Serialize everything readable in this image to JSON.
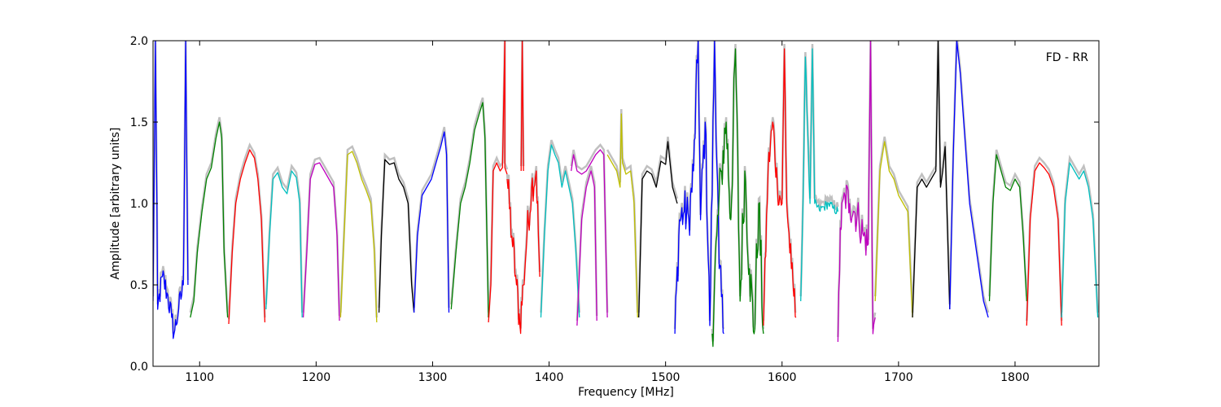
{
  "chart_data": {
    "type": "line",
    "annotation": "FD - RR",
    "xlabel": "Frequency [MHz]",
    "ylabel": "Amplitude [arbitrary units]",
    "xlim": [
      1060,
      1872
    ],
    "ylim": [
      0,
      2.0
    ],
    "xticks": [
      1100,
      1200,
      1300,
      1400,
      1500,
      1600,
      1700,
      1800
    ],
    "yticks": [
      0.0,
      0.5,
      1.0,
      1.5,
      2.0
    ],
    "ytick_labels": [
      "0.0",
      "0.5",
      "1.0",
      "1.5",
      "2.0"
    ],
    "grid": false,
    "background_color": "#c0c0c0",
    "colors": {
      "b": "#0000ff",
      "g": "#008000",
      "r": "#ff0000",
      "c": "#00bfbf",
      "m": "#bf00bf",
      "y": "#bfbf00",
      "k": "#000000"
    },
    "series": [
      {
        "color": "b",
        "noise": 0.08,
        "x": [
          1060,
          1062,
          1064,
          1068,
          1072,
          1076,
          1078,
          1082,
          1086,
          1088,
          1090
        ],
        "y": [
          0.4,
          2.0,
          0.35,
          0.55,
          0.45,
          0.3,
          0.2,
          0.35,
          0.5,
          2.0,
          0.5
        ]
      },
      {
        "color": "g",
        "noise": 0.0,
        "x": [
          1092,
          1095,
          1098,
          1102,
          1106,
          1110,
          1114,
          1117,
          1119,
          1121,
          1124
        ],
        "y": [
          0.3,
          0.4,
          0.7,
          0.95,
          1.15,
          1.22,
          1.4,
          1.5,
          1.4,
          0.7,
          0.3
        ]
      },
      {
        "color": "r",
        "noise": 0.0,
        "x": [
          1125,
          1128,
          1131,
          1135,
          1139,
          1143,
          1147,
          1150,
          1153,
          1156
        ],
        "y": [
          0.26,
          0.7,
          1.0,
          1.15,
          1.25,
          1.33,
          1.28,
          1.15,
          0.9,
          0.27
        ]
      },
      {
        "color": "c",
        "noise": 0.0,
        "x": [
          1157,
          1160,
          1163,
          1167,
          1171,
          1175,
          1179,
          1183,
          1186,
          1188
        ],
        "y": [
          0.35,
          0.8,
          1.15,
          1.19,
          1.1,
          1.06,
          1.2,
          1.16,
          1.0,
          0.3
        ]
      },
      {
        "color": "m",
        "noise": 0.0,
        "x": [
          1189,
          1192,
          1195,
          1199,
          1203,
          1207,
          1211,
          1215,
          1218,
          1220
        ],
        "y": [
          0.3,
          0.7,
          1.15,
          1.24,
          1.25,
          1.2,
          1.15,
          1.1,
          0.8,
          0.28
        ]
      },
      {
        "color": "y",
        "noise": 0.0,
        "x": [
          1221,
          1224,
          1227,
          1231,
          1235,
          1239,
          1243,
          1247,
          1250,
          1252
        ],
        "y": [
          0.3,
          0.8,
          1.3,
          1.32,
          1.25,
          1.15,
          1.08,
          1.0,
          0.7,
          0.27
        ]
      },
      {
        "color": "k",
        "noise": 0.0,
        "x": [
          1254,
          1256,
          1259,
          1263,
          1267,
          1271,
          1275,
          1279,
          1282,
          1284
        ],
        "y": [
          0.33,
          0.8,
          1.27,
          1.24,
          1.25,
          1.15,
          1.1,
          1.0,
          0.5,
          0.33
        ]
      },
      {
        "color": "b",
        "noise": 0.0,
        "x": [
          1284,
          1287,
          1291,
          1295,
          1299,
          1303,
          1307,
          1310,
          1312,
          1314
        ],
        "y": [
          0.33,
          0.8,
          1.05,
          1.1,
          1.15,
          1.25,
          1.35,
          1.44,
          1.3,
          0.33
        ]
      },
      {
        "color": "g",
        "noise": 0.0,
        "x": [
          1316,
          1320,
          1324,
          1328,
          1332,
          1336,
          1340,
          1343,
          1345,
          1348
        ],
        "y": [
          0.35,
          0.7,
          1.0,
          1.1,
          1.25,
          1.45,
          1.55,
          1.62,
          1.4,
          0.3
        ]
      },
      {
        "color": "r",
        "noise": 0.0,
        "x": [
          1348,
          1350,
          1352,
          1355,
          1358,
          1360,
          1362,
          1362,
          1364
        ],
        "y": [
          0.27,
          0.5,
          1.2,
          1.25,
          1.2,
          1.22,
          2.0,
          1.22,
          1.18
        ]
      },
      {
        "color": "r",
        "noise": 0.12,
        "x": [
          1364,
          1368,
          1372,
          1375,
          1378,
          1381,
          1385,
          1389,
          1392
        ],
        "y": [
          1.15,
          0.8,
          0.5,
          0.25,
          0.5,
          0.8,
          1.1,
          1.2,
          0.55
        ]
      },
      {
        "color": "r",
        "noise": 0.0,
        "x": [
          1376,
          1377,
          1378
        ],
        "y": [
          1.2,
          2.0,
          1.2
        ]
      },
      {
        "color": "c",
        "noise": 0.0,
        "x": [
          1393,
          1396,
          1399,
          1402,
          1405,
          1408,
          1411,
          1414,
          1417,
          1420,
          1423,
          1426
        ],
        "y": [
          0.3,
          0.8,
          1.2,
          1.36,
          1.3,
          1.25,
          1.1,
          1.2,
          1.1,
          1.0,
          0.7,
          0.3
        ]
      },
      {
        "color": "m",
        "noise": 0.0,
        "x": [
          1419,
          1421,
          1424,
          1428,
          1432,
          1436,
          1440,
          1444,
          1447,
          1450
        ],
        "y": [
          1.2,
          1.3,
          1.2,
          1.18,
          1.2,
          1.25,
          1.3,
          1.33,
          1.3,
          0.3
        ]
      },
      {
        "color": "m",
        "noise": 0.0,
        "x": [
          1424,
          1428,
          1432,
          1436,
          1439,
          1441
        ],
        "y": [
          0.25,
          0.9,
          1.1,
          1.2,
          1.1,
          0.28
        ]
      },
      {
        "color": "y",
        "noise": 0.0,
        "x": [
          1450,
          1454,
          1458,
          1461,
          1462,
          1463,
          1466,
          1470,
          1473,
          1476
        ],
        "y": [
          1.3,
          1.25,
          1.2,
          1.1,
          1.55,
          1.25,
          1.18,
          1.2,
          1.0,
          0.3
        ]
      },
      {
        "color": "k",
        "noise": 0.0,
        "x": [
          1477,
          1480,
          1484,
          1488,
          1492,
          1496,
          1500,
          1502,
          1506,
          1510
        ],
        "y": [
          0.3,
          1.15,
          1.2,
          1.18,
          1.1,
          1.26,
          1.24,
          1.38,
          1.1,
          1.0
        ]
      },
      {
        "color": "b",
        "noise": 0.15,
        "x": [
          1508,
          1512,
          1516,
          1520,
          1524,
          1528,
          1530,
          1534,
          1538,
          1542,
          1546,
          1550
        ],
        "y": [
          0.2,
          0.9,
          0.95,
          0.9,
          1.2,
          2.0,
          0.9,
          1.5,
          0.25,
          2.0,
          0.6,
          0.2
        ]
      },
      {
        "color": "g",
        "noise": 0.18,
        "x": [
          1540,
          1544,
          1548,
          1552,
          1556,
          1560,
          1564,
          1568,
          1572,
          1576,
          1580,
          1584
        ],
        "y": [
          0.2,
          0.8,
          1.2,
          1.5,
          0.9,
          1.95,
          0.4,
          1.2,
          0.6,
          0.2,
          1.0,
          0.2
        ]
      },
      {
        "color": "r",
        "noise": 0.1,
        "x": [
          1584,
          1588,
          1592,
          1596,
          1600,
          1602,
          1604,
          1608,
          1612
        ],
        "y": [
          0.25,
          1.2,
          1.5,
          1.1,
          1.0,
          1.95,
          1.0,
          0.6,
          0.3
        ]
      },
      {
        "color": "c",
        "noise": 0.03,
        "x": [
          1616,
          1618,
          1620,
          1624,
          1626,
          1628,
          1632,
          1636,
          1640,
          1644,
          1648
        ],
        "y": [
          0.4,
          1.0,
          1.9,
          1.0,
          1.95,
          1.0,
          0.96,
          0.98,
          1.0,
          0.97,
          0.95
        ]
      },
      {
        "color": "m",
        "noise": 0.12,
        "x": [
          1648,
          1650,
          1654,
          1658,
          1662,
          1666,
          1670,
          1674,
          1676,
          1678,
          1680
        ],
        "y": [
          0.15,
          0.85,
          1.05,
          1.0,
          0.95,
          0.9,
          0.8,
          0.75,
          2.0,
          0.2,
          0.3
        ]
      },
      {
        "color": "y",
        "noise": 0.0,
        "x": [
          1680,
          1684,
          1688,
          1692,
          1696,
          1700,
          1704,
          1708,
          1712
        ],
        "y": [
          0.4,
          1.2,
          1.38,
          1.2,
          1.15,
          1.05,
          1.0,
          0.95,
          0.3
        ]
      },
      {
        "color": "k",
        "noise": 0.0,
        "x": [
          1712,
          1716,
          1720,
          1724,
          1728,
          1732,
          1734,
          1736,
          1738,
          1740,
          1744
        ],
        "y": [
          0.3,
          1.1,
          1.15,
          1.1,
          1.15,
          1.2,
          2.0,
          1.1,
          1.2,
          1.35,
          0.35
        ]
      },
      {
        "color": "b",
        "noise": 0.0,
        "x": [
          1744,
          1747,
          1750,
          1753,
          1757,
          1761,
          1765,
          1769,
          1773,
          1777
        ],
        "y": [
          0.35,
          1.3,
          2.0,
          1.8,
          1.4,
          1.0,
          0.8,
          0.6,
          0.4,
          0.3
        ]
      },
      {
        "color": "g",
        "noise": 0.0,
        "x": [
          1778,
          1781,
          1784,
          1788,
          1792,
          1796,
          1800,
          1804,
          1807,
          1810
        ],
        "y": [
          0.4,
          1.0,
          1.3,
          1.2,
          1.1,
          1.08,
          1.15,
          1.1,
          0.8,
          0.4
        ]
      },
      {
        "color": "r",
        "noise": 0.0,
        "x": [
          1810,
          1813,
          1817,
          1821,
          1825,
          1829,
          1833,
          1837,
          1840
        ],
        "y": [
          0.25,
          0.9,
          1.2,
          1.25,
          1.22,
          1.18,
          1.1,
          0.9,
          0.25
        ]
      },
      {
        "color": "c",
        "noise": 0.0,
        "x": [
          1840,
          1843,
          1847,
          1851,
          1855,
          1859,
          1863,
          1867,
          1871
        ],
        "y": [
          0.3,
          1.0,
          1.25,
          1.2,
          1.15,
          1.2,
          1.1,
          0.9,
          0.3
        ]
      }
    ]
  }
}
